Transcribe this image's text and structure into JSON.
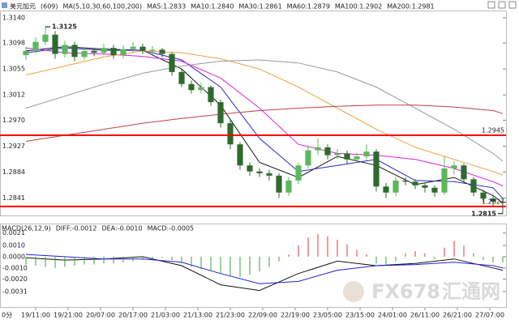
{
  "period_label": "0分",
  "watermark": [
    "FX678",
    "汇通网"
  ],
  "chart_data": [
    {
      "type": "candlestick",
      "title": "美元加元",
      "subtitle": "(609)",
      "indicator": "MA(5,10,30,60,100,200)",
      "xlim": [
        -8,
        148
      ],
      "ylim": [
        1.2812,
        1.3152
      ],
      "yticks": [
        {
          "value": 1.314,
          "label": "1.3140"
        },
        1.3098,
        1.3055,
        1.3012,
        {
          "value": 1.297,
          "label": "1.2970"
        },
        1.2927,
        1.2884,
        1.2841
      ],
      "grid": false,
      "up_color": "#5cb85c",
      "down_color": "#2f6a2f",
      "x": [
        0,
        3,
        6,
        9,
        12,
        15,
        18,
        21,
        24,
        27,
        30,
        33,
        36,
        39,
        42,
        45,
        48,
        51,
        54,
        57,
        60,
        63,
        66,
        69,
        72,
        75,
        78,
        81,
        84,
        87,
        90,
        93,
        96,
        99,
        102,
        105,
        108,
        111,
        114,
        117,
        120,
        123,
        126,
        129,
        132,
        135,
        138,
        141,
        144,
        147
      ],
      "open": [
        1.3078,
        1.3085,
        1.31,
        1.3112,
        1.308,
        1.3095,
        1.3075,
        1.3085,
        1.3082,
        1.309,
        1.3078,
        1.3088,
        1.3092,
        1.3085,
        1.3087,
        1.308,
        1.305,
        1.303,
        1.302,
        1.3025,
        1.3,
        1.2965,
        1.293,
        1.2895,
        1.2885,
        1.2882,
        1.2878,
        1.285,
        1.287,
        1.2895,
        1.292,
        1.2925,
        1.2912,
        1.2915,
        1.2905,
        1.291,
        1.2918,
        1.286,
        1.285,
        1.287,
        1.2868,
        1.2862,
        1.2858,
        1.285,
        1.289,
        1.2895,
        1.2872,
        1.285,
        1.284,
        1.2835
      ],
      "high": [
        1.3092,
        1.3108,
        1.3125,
        1.3118,
        1.3102,
        1.31,
        1.3092,
        1.309,
        1.3097,
        1.3095,
        1.3094,
        1.31,
        1.3097,
        1.3093,
        1.309,
        1.3083,
        1.3055,
        1.3036,
        1.3032,
        1.3028,
        1.3004,
        1.297,
        1.2934,
        1.29,
        1.289,
        1.2888,
        1.2882,
        1.2876,
        1.29,
        1.2928,
        1.294,
        1.293,
        1.2922,
        1.292,
        1.2916,
        1.293,
        1.2922,
        1.2866,
        1.2876,
        1.2875,
        1.2872,
        1.2866,
        1.2862,
        1.291,
        1.2902,
        1.2898,
        1.2876,
        1.2855,
        1.2844,
        1.2838
      ],
      "low": [
        1.307,
        1.308,
        1.3095,
        1.3072,
        1.3074,
        1.3068,
        1.307,
        1.3076,
        1.3078,
        1.3072,
        1.3073,
        1.3082,
        1.308,
        1.3079,
        1.3074,
        1.3044,
        1.3025,
        1.3014,
        1.3015,
        1.2994,
        1.2958,
        1.2922,
        1.2888,
        1.2878,
        1.2876,
        1.287,
        1.2841,
        1.2845,
        1.2864,
        1.289,
        1.2912,
        1.2905,
        1.2906,
        1.2898,
        1.2899,
        1.2904,
        1.2852,
        1.2841,
        1.2844,
        1.2862,
        1.2856,
        1.285,
        1.2843,
        1.2846,
        1.288,
        1.2866,
        1.2844,
        1.2834,
        1.2828,
        1.2815
      ],
      "close": [
        1.3085,
        1.31,
        1.3112,
        1.308,
        1.3095,
        1.3075,
        1.3085,
        1.3082,
        1.309,
        1.3078,
        1.3088,
        1.3092,
        1.3085,
        1.3087,
        1.308,
        1.305,
        1.303,
        1.302,
        1.3025,
        1.3,
        1.2965,
        1.293,
        1.2895,
        1.2885,
        1.2882,
        1.2878,
        1.285,
        1.287,
        1.2895,
        1.292,
        1.2925,
        1.2912,
        1.2915,
        1.2905,
        1.291,
        1.2918,
        1.286,
        1.285,
        1.287,
        1.2868,
        1.2862,
        1.2858,
        1.285,
        1.289,
        1.2895,
        1.2872,
        1.285,
        1.284,
        1.2835,
        1.2833
      ],
      "hlines": [
        1.2945,
        1.2827
      ],
      "hline_color": "#ff0000",
      "series": [
        {
          "name": "MA5:1.2833",
          "color": "#111111",
          "x": [
            0,
            12,
            24,
            36,
            48,
            60,
            72,
            84,
            96,
            108,
            120,
            132,
            144,
            147
          ],
          "values": [
            1.3085,
            1.3092,
            1.3088,
            1.3086,
            1.3055,
            1.2995,
            1.29,
            1.2875,
            1.291,
            1.2895,
            1.2863,
            1.2875,
            1.2845,
            1.2833
          ]
        },
        {
          "name": "MA10:1.2840",
          "color": "#2828c8",
          "x": [
            0,
            12,
            24,
            36,
            48,
            60,
            72,
            84,
            96,
            108,
            120,
            132,
            144,
            147
          ],
          "values": [
            1.3082,
            1.309,
            1.3086,
            1.3086,
            1.307,
            1.3025,
            1.294,
            1.2885,
            1.2895,
            1.2905,
            1.287,
            1.2868,
            1.2858,
            1.284
          ]
        },
        {
          "name": "MA30:1.2861",
          "color": "#e020e0",
          "x": [
            0,
            12,
            24,
            36,
            48,
            60,
            72,
            84,
            96,
            108,
            120,
            132,
            144,
            147
          ],
          "values": [
            1.309,
            1.3082,
            1.308,
            1.3076,
            1.3068,
            1.304,
            1.299,
            1.293,
            1.2915,
            1.2912,
            1.2905,
            1.289,
            1.2868,
            1.2861
          ]
        },
        {
          "name": "MA60:1.2879",
          "color": "#f0a040",
          "x": [
            0,
            12,
            24,
            36,
            48,
            60,
            72,
            84,
            96,
            108,
            120,
            132,
            144,
            147
          ],
          "values": [
            1.3045,
            1.306,
            1.3075,
            1.3085,
            1.3082,
            1.3072,
            1.3055,
            1.3025,
            1.299,
            1.2955,
            1.2925,
            1.2905,
            1.2885,
            1.2879
          ]
        },
        {
          "name": "MA100:1.2902",
          "color": "#9a9a9a",
          "x": [
            0,
            12,
            24,
            36,
            48,
            60,
            72,
            84,
            96,
            108,
            120,
            132,
            144,
            147
          ],
          "values": [
            1.299,
            1.301,
            1.303,
            1.3048,
            1.306,
            1.3068,
            1.307,
            1.3065,
            1.305,
            1.3025,
            1.299,
            1.2955,
            1.2915,
            1.2902
          ]
        },
        {
          "name": "MA200:1.2981",
          "color": "#c04040",
          "x": [
            0,
            12,
            24,
            36,
            48,
            60,
            72,
            84,
            96,
            108,
            120,
            132,
            144,
            147
          ],
          "values": [
            1.2935,
            1.2945,
            1.2955,
            1.2965,
            1.2973,
            1.298,
            1.2986,
            1.299,
            1.2993,
            1.2995,
            1.2995,
            1.2992,
            1.2986,
            1.2981
          ]
        }
      ]
    },
    {
      "type": "macd",
      "title": "MACD(26,12,9)",
      "xlim": [
        -8,
        148
      ],
      "ylim": [
        -0.0044,
        0.0028
      ],
      "yticks": [
        0.0021,
        {
          "value": 0.001,
          "label": "0.0010"
        },
        {
          "value": 0,
          "label": "0.0000"
        },
        {
          "value": -0.001,
          "label": "-0.0010"
        },
        {
          "value": -0.002,
          "label": "-0.0020"
        },
        -0.0031
      ],
      "xticks": [
        {
          "value": 3,
          "label": "19/11:00"
        },
        {
          "value": 13,
          "label": "19/21:00"
        },
        {
          "value": 23,
          "label": "20/07:00"
        },
        {
          "value": 33,
          "label": "20/17:00"
        },
        {
          "value": 43,
          "label": "21/03:00"
        },
        {
          "value": 53,
          "label": "21/13:00"
        },
        {
          "value": 63,
          "label": "21/23:00"
        },
        {
          "value": 73,
          "label": "22/09:00"
        },
        {
          "value": 83,
          "label": "22/19:00"
        },
        {
          "value": 93,
          "label": "23/05:00"
        },
        {
          "value": 103,
          "label": "23/15:00"
        },
        {
          "value": 113,
          "label": "24/01:00"
        },
        {
          "value": 123,
          "label": "26/11:00"
        },
        {
          "value": 133,
          "label": "26/21:00"
        },
        {
          "value": 143,
          "label": "27/07:00"
        }
      ],
      "x": [
        0,
        3,
        6,
        9,
        12,
        15,
        18,
        21,
        24,
        27,
        30,
        33,
        36,
        39,
        42,
        45,
        48,
        51,
        54,
        57,
        60,
        63,
        66,
        69,
        72,
        75,
        78,
        81,
        84,
        87,
        90,
        93,
        96,
        99,
        102,
        105,
        108,
        111,
        114,
        117,
        120,
        123,
        126,
        129,
        132,
        135,
        138,
        141,
        144,
        147
      ],
      "series": [
        {
          "name": "DIFF:-0.0012",
          "color": "#111111",
          "x": [
            0,
            12,
            24,
            36,
            48,
            60,
            72,
            84,
            96,
            108,
            120,
            132,
            144,
            147
          ],
          "values": [
            -0.0001,
            -0.0003,
            -0.0002,
            0.0,
            -0.0008,
            -0.0025,
            -0.003,
            -0.0015,
            -0.0004,
            -0.0008,
            -0.0006,
            -0.0002,
            -0.001,
            -0.0012
          ]
        },
        {
          "name": "DEA:-0.0010",
          "color": "#2020e0",
          "x": [
            0,
            12,
            24,
            36,
            48,
            60,
            72,
            84,
            96,
            108,
            120,
            132,
            144,
            147
          ],
          "values": [
            0.0002,
            0.0,
            -0.0002,
            -0.0002,
            -0.0005,
            -0.0015,
            -0.0024,
            -0.0022,
            -0.0012,
            -0.0008,
            -0.0007,
            -0.0005,
            -0.0008,
            -0.001
          ]
        },
        {
          "name": "MACD:-0.0005",
          "color": "#cc00cc",
          "type": "bar",
          "pos_color": "#e03a3a",
          "neg_color": "#3aa03a",
          "values": [
            -0.0007,
            -0.0008,
            -0.0009,
            -0.001,
            -0.0009,
            -0.0008,
            -0.0007,
            -0.0007,
            -0.0006,
            -0.0006,
            -0.0005,
            -0.0004,
            -0.0003,
            -0.0002,
            -0.0001,
            -0.0003,
            -0.0006,
            -0.0009,
            -0.0011,
            -0.0013,
            -0.0015,
            -0.0017,
            -0.0018,
            -0.0016,
            -0.0013,
            -0.0009,
            -0.0004,
            0.0002,
            0.001,
            0.0017,
            0.002,
            0.0018,
            0.0015,
            0.0011,
            0.0006,
            0.0002,
            -0.0006,
            -0.0008,
            -0.0004,
            0.0003,
            0.0005,
            0.0003,
            -0.0002,
            0.0008,
            0.0014,
            0.001,
            0.0003,
            -0.0003,
            -0.0005,
            -0.0005
          ]
        }
      ]
    }
  ]
}
